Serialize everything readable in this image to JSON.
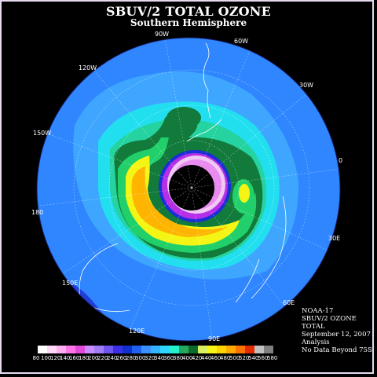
{
  "title": "SBUV/2 TOTAL OZONE",
  "subtitle": "Southern Hemisphere",
  "longitude_labels": {
    "lon_90w": "90W",
    "lon_60w": "60W",
    "lon_30w": "30W",
    "lon_0": "0",
    "lon_30e": "30E",
    "lon_60e": "60E",
    "lon_90e": "90E",
    "lon_120e": "120E",
    "lon_150e": "150E",
    "lon_180": "180",
    "lon_150w": "150W",
    "lon_120w": "120W"
  },
  "info": {
    "satellite": "NOAA-17",
    "product": "SBUV/2 OZONE",
    "quantity": "TOTAL",
    "date": "September 12, 2007",
    "type": "Analysis",
    "note": "No Data Beyond 75S"
  },
  "colorbar": {
    "ticks": [
      "80",
      "100",
      "120",
      "140",
      "160",
      "180",
      "200",
      "220",
      "240",
      "260",
      "280",
      "300",
      "320",
      "340",
      "360",
      "380",
      "400",
      "420",
      "440",
      "460",
      "480",
      "500",
      "520",
      "540",
      "560",
      "580"
    ],
    "colors": [
      "#ffffff",
      "#ffd9f5",
      "#ffaef0",
      "#ff74e6",
      "#e24ad9",
      "#c88cff",
      "#a07cf5",
      "#6e55f0",
      "#3b30e8",
      "#1030d0",
      "#1e60f0",
      "#3c90ff",
      "#33b4ff",
      "#2dd6ff",
      "#24f0ce",
      "#26a85c",
      "#0a6b2a",
      "#d8f060",
      "#f7f518",
      "#ffd500",
      "#ffaa00",
      "#ff7200",
      "#e42b00",
      "#c0c0c0",
      "#808080"
    ]
  },
  "legend_colors": {
    "polar_core": "#000000",
    "hole_fill": "#f0c8f2",
    "low_ring": "#b52ee8",
    "blue_base": "#2f86ff",
    "collar": "#1eb4ff",
    "green_band": "#127a3a",
    "light_green": "#21d06a",
    "yellow_max": "#f5f515",
    "orange_max": "#ffb400"
  }
}
